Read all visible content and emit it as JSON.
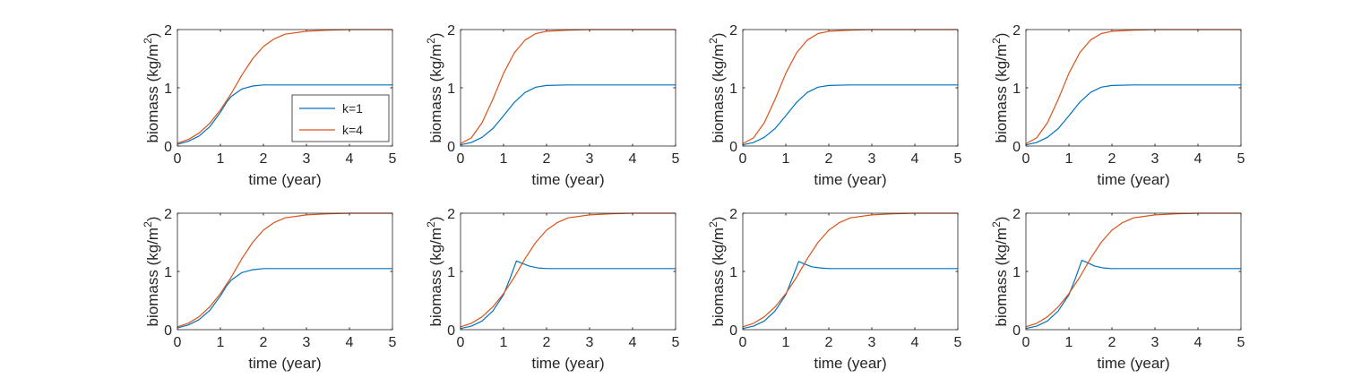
{
  "chart_data": [
    {
      "type": "line",
      "xlabel": "time (year)",
      "ylabel": "biomass (kg/m",
      "ylabel_superscript": "2",
      "ylabel_close": ")",
      "xlim": [
        0,
        5
      ],
      "ylim": [
        0,
        2
      ],
      "xticks": [
        "0",
        "1",
        "2",
        "3",
        "4",
        "5"
      ],
      "yticks": [
        "0",
        "1",
        "2"
      ],
      "grid": false,
      "legend": {
        "position": "bottom-right",
        "entries": [
          "k=1",
          "k=4"
        ]
      },
      "series": [
        {
          "name": "k=1",
          "color": "#0072BD",
          "x": [
            0,
            0.25,
            0.5,
            0.75,
            1,
            1.15,
            1.25,
            1.5,
            1.75,
            2,
            2.5,
            3,
            4,
            5
          ],
          "y": [
            0.03,
            0.08,
            0.17,
            0.33,
            0.58,
            0.76,
            0.85,
            0.98,
            1.03,
            1.05,
            1.05,
            1.05,
            1.05,
            1.05
          ]
        },
        {
          "name": "k=4",
          "color": "#D95319",
          "x": [
            0,
            0.25,
            0.5,
            0.75,
            1,
            1.25,
            1.5,
            1.75,
            2,
            2.25,
            2.5,
            3,
            3.5,
            4,
            5
          ],
          "y": [
            0.05,
            0.11,
            0.22,
            0.39,
            0.62,
            0.9,
            1.22,
            1.5,
            1.71,
            1.84,
            1.92,
            1.97,
            1.99,
            2.0,
            2.0
          ]
        }
      ]
    },
    {
      "type": "line",
      "xlabel": "time (year)",
      "ylabel": "biomass (kg/m",
      "ylabel_superscript": "2",
      "ylabel_close": ")",
      "xlim": [
        0,
        5
      ],
      "ylim": [
        0,
        2
      ],
      "xticks": [
        "0",
        "1",
        "2",
        "3",
        "4",
        "5"
      ],
      "yticks": [
        "0",
        "1",
        "2"
      ],
      "grid": false,
      "series": [
        {
          "name": "k=1",
          "color": "#0072BD",
          "x": [
            0,
            0.25,
            0.5,
            0.75,
            1,
            1.25,
            1.5,
            1.75,
            2,
            2.5,
            3,
            4,
            5
          ],
          "y": [
            0.02,
            0.06,
            0.15,
            0.3,
            0.52,
            0.75,
            0.92,
            1.01,
            1.04,
            1.05,
            1.05,
            1.05,
            1.05
          ]
        },
        {
          "name": "k=4",
          "color": "#D95319",
          "x": [
            0,
            0.25,
            0.5,
            0.75,
            1,
            1.25,
            1.5,
            1.75,
            2,
            2.5,
            3,
            4,
            5
          ],
          "y": [
            0.04,
            0.14,
            0.4,
            0.8,
            1.25,
            1.6,
            1.82,
            1.93,
            1.97,
            1.99,
            2.0,
            2.0,
            2.0
          ]
        }
      ]
    },
    {
      "type": "line",
      "xlabel": "time (year)",
      "ylabel": "biomass (kg/m",
      "ylabel_superscript": "2",
      "ylabel_close": ")",
      "xlim": [
        0,
        5
      ],
      "ylim": [
        0,
        2
      ],
      "xticks": [
        "0",
        "1",
        "2",
        "3",
        "4",
        "5"
      ],
      "yticks": [
        "0",
        "1",
        "2"
      ],
      "grid": false,
      "series": [
        {
          "name": "k=1",
          "color": "#0072BD",
          "x": [
            0,
            0.25,
            0.5,
            0.75,
            1,
            1.25,
            1.5,
            1.75,
            2,
            2.5,
            3,
            4,
            5
          ],
          "y": [
            0.02,
            0.06,
            0.15,
            0.3,
            0.52,
            0.75,
            0.92,
            1.01,
            1.04,
            1.05,
            1.05,
            1.05,
            1.05
          ]
        },
        {
          "name": "k=4",
          "color": "#D95319",
          "x": [
            0,
            0.25,
            0.5,
            0.75,
            1,
            1.25,
            1.5,
            1.75,
            2,
            2.5,
            3,
            4,
            5
          ],
          "y": [
            0.04,
            0.14,
            0.4,
            0.8,
            1.25,
            1.6,
            1.82,
            1.93,
            1.97,
            1.99,
            2.0,
            2.0,
            2.0
          ]
        }
      ]
    },
    {
      "type": "line",
      "xlabel": "time (year)",
      "ylabel": "biomass (kg/m",
      "ylabel_superscript": "2",
      "ylabel_close": ")",
      "xlim": [
        0,
        5
      ],
      "ylim": [
        0,
        2
      ],
      "xticks": [
        "0",
        "1",
        "2",
        "3",
        "4",
        "5"
      ],
      "yticks": [
        "0",
        "1",
        "2"
      ],
      "grid": false,
      "series": [
        {
          "name": "k=1",
          "color": "#0072BD",
          "x": [
            0,
            0.25,
            0.5,
            0.75,
            1,
            1.25,
            1.5,
            1.75,
            2,
            2.5,
            3,
            4,
            5
          ],
          "y": [
            0.02,
            0.06,
            0.15,
            0.3,
            0.52,
            0.75,
            0.92,
            1.01,
            1.04,
            1.05,
            1.05,
            1.05,
            1.05
          ]
        },
        {
          "name": "k=4",
          "color": "#D95319",
          "x": [
            0,
            0.25,
            0.5,
            0.75,
            1,
            1.25,
            1.5,
            1.75,
            2,
            2.5,
            3,
            4,
            5
          ],
          "y": [
            0.04,
            0.14,
            0.4,
            0.8,
            1.25,
            1.6,
            1.82,
            1.93,
            1.97,
            1.99,
            2.0,
            2.0,
            2.0
          ]
        }
      ]
    },
    {
      "type": "line",
      "xlabel": "time (year)",
      "ylabel": "biomass (kg/m",
      "ylabel_superscript": "2",
      "ylabel_close": ")",
      "xlim": [
        0,
        5
      ],
      "ylim": [
        0,
        2
      ],
      "xticks": [
        "0",
        "1",
        "2",
        "3",
        "4",
        "5"
      ],
      "yticks": [
        "0",
        "1",
        "2"
      ],
      "grid": false,
      "series": [
        {
          "name": "k=1",
          "color": "#0072BD",
          "x": [
            0,
            0.25,
            0.5,
            0.75,
            1,
            1.15,
            1.25,
            1.5,
            1.75,
            2,
            2.5,
            3,
            4,
            5
          ],
          "y": [
            0.03,
            0.08,
            0.17,
            0.33,
            0.58,
            0.76,
            0.85,
            0.98,
            1.03,
            1.05,
            1.05,
            1.05,
            1.05,
            1.05
          ]
        },
        {
          "name": "k=4",
          "color": "#D95319",
          "x": [
            0,
            0.25,
            0.5,
            0.75,
            1,
            1.25,
            1.5,
            1.75,
            2,
            2.25,
            2.5,
            3,
            3.5,
            4,
            5
          ],
          "y": [
            0.05,
            0.11,
            0.22,
            0.39,
            0.62,
            0.9,
            1.22,
            1.5,
            1.71,
            1.84,
            1.92,
            1.97,
            1.99,
            2.0,
            2.0
          ]
        }
      ]
    },
    {
      "type": "line",
      "xlabel": "time (year)",
      "ylabel": "biomass (kg/m",
      "ylabel_superscript": "2",
      "ylabel_close": ")",
      "xlim": [
        0,
        5
      ],
      "ylim": [
        0,
        2
      ],
      "xticks": [
        "0",
        "1",
        "2",
        "3",
        "4",
        "5"
      ],
      "yticks": [
        "0",
        "1",
        "2"
      ],
      "grid": false,
      "series": [
        {
          "name": "k=1",
          "color": "#0072BD",
          "x": [
            0,
            0.25,
            0.5,
            0.75,
            1,
            1.15,
            1.3,
            1.4,
            1.6,
            1.8,
            2,
            2.5,
            3,
            4,
            5
          ],
          "y": [
            0.02,
            0.06,
            0.15,
            0.32,
            0.6,
            0.88,
            1.18,
            1.15,
            1.09,
            1.06,
            1.05,
            1.05,
            1.05,
            1.05,
            1.05
          ]
        },
        {
          "name": "k=4",
          "color": "#D95319",
          "x": [
            0,
            0.25,
            0.5,
            0.75,
            1,
            1.25,
            1.5,
            1.75,
            2,
            2.25,
            2.5,
            3,
            3.5,
            4,
            5
          ],
          "y": [
            0.05,
            0.11,
            0.22,
            0.39,
            0.62,
            0.9,
            1.22,
            1.5,
            1.71,
            1.84,
            1.92,
            1.97,
            1.99,
            2.0,
            2.0
          ]
        }
      ]
    },
    {
      "type": "line",
      "xlabel": "time (year)",
      "ylabel": "biomass (kg/m",
      "ylabel_superscript": "2",
      "ylabel_close": ")",
      "xlim": [
        0,
        5
      ],
      "ylim": [
        0,
        2
      ],
      "xticks": [
        "0",
        "1",
        "2",
        "3",
        "4",
        "5"
      ],
      "yticks": [
        "0",
        "1",
        "2"
      ],
      "grid": false,
      "series": [
        {
          "name": "k=1",
          "color": "#0072BD",
          "x": [
            0,
            0.25,
            0.5,
            0.75,
            1,
            1.15,
            1.3,
            1.4,
            1.6,
            1.8,
            2,
            2.5,
            3,
            4,
            5
          ],
          "y": [
            0.02,
            0.06,
            0.15,
            0.32,
            0.6,
            0.88,
            1.17,
            1.14,
            1.08,
            1.06,
            1.05,
            1.05,
            1.05,
            1.05,
            1.05
          ]
        },
        {
          "name": "k=4",
          "color": "#D95319",
          "x": [
            0,
            0.25,
            0.5,
            0.75,
            1,
            1.25,
            1.5,
            1.75,
            2,
            2.25,
            2.5,
            3,
            3.5,
            4,
            5
          ],
          "y": [
            0.05,
            0.11,
            0.22,
            0.39,
            0.62,
            0.9,
            1.22,
            1.5,
            1.71,
            1.84,
            1.92,
            1.97,
            1.99,
            2.0,
            2.0
          ]
        }
      ]
    },
    {
      "type": "line",
      "xlabel": "time (year)",
      "ylabel": "biomass (kg/m",
      "ylabel_superscript": "2",
      "ylabel_close": ")",
      "xlim": [
        0,
        5
      ],
      "ylim": [
        0,
        2
      ],
      "xticks": [
        "0",
        "1",
        "2",
        "3",
        "4",
        "5"
      ],
      "yticks": [
        "0",
        "1",
        "2"
      ],
      "grid": false,
      "series": [
        {
          "name": "k=1",
          "color": "#0072BD",
          "x": [
            0,
            0.25,
            0.5,
            0.75,
            1,
            1.15,
            1.3,
            1.4,
            1.6,
            1.8,
            2,
            2.5,
            3,
            4,
            5
          ],
          "y": [
            0.02,
            0.06,
            0.15,
            0.32,
            0.6,
            0.88,
            1.19,
            1.16,
            1.09,
            1.06,
            1.05,
            1.05,
            1.05,
            1.05,
            1.05
          ]
        },
        {
          "name": "k=4",
          "color": "#D95319",
          "x": [
            0,
            0.25,
            0.5,
            0.75,
            1,
            1.25,
            1.5,
            1.75,
            2,
            2.25,
            2.5,
            3,
            3.5,
            4,
            5
          ],
          "y": [
            0.05,
            0.11,
            0.22,
            0.39,
            0.62,
            0.9,
            1.22,
            1.5,
            1.71,
            1.84,
            1.92,
            1.97,
            1.99,
            2.0,
            2.0
          ]
        }
      ]
    }
  ]
}
